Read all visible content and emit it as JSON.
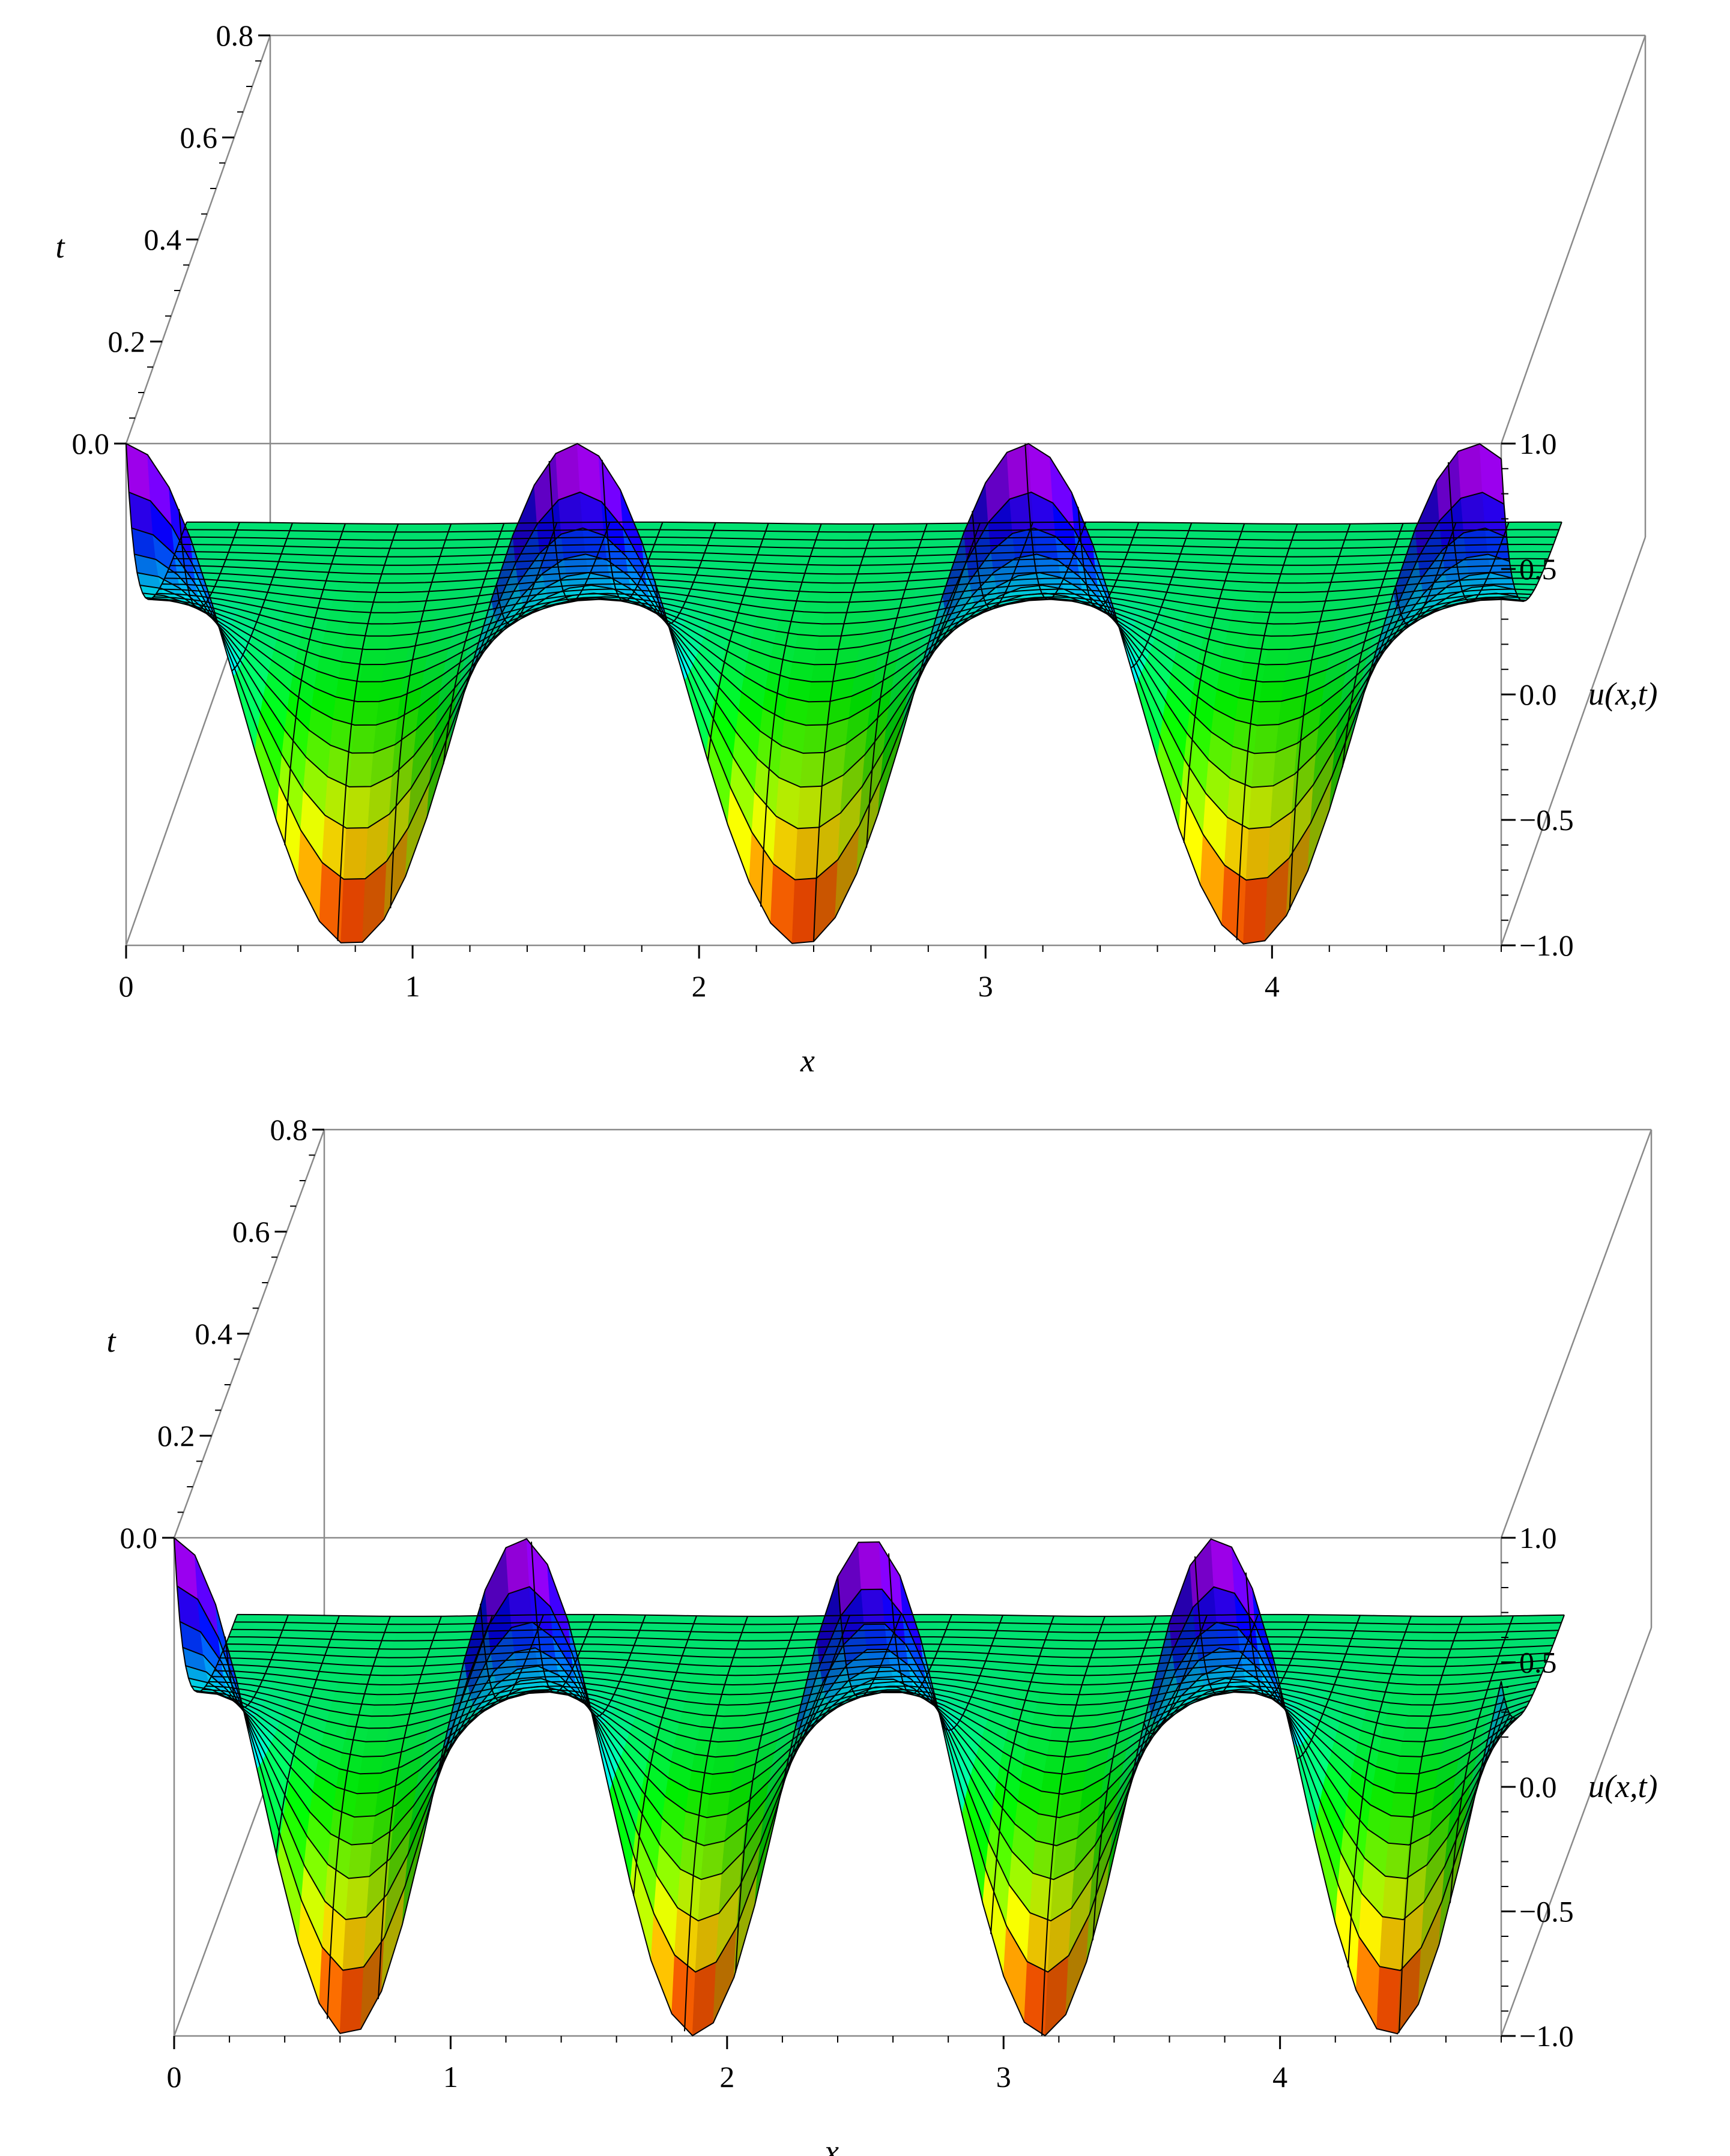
{
  "chart_data": [
    {
      "type": "surface3d",
      "function_label": "u(x,t)",
      "x_axis": {
        "label": "x",
        "ticks": [
          "0",
          "1",
          "2",
          "3",
          "4"
        ],
        "range": [
          0,
          4.8
        ]
      },
      "t_axis": {
        "label": "t",
        "ticks": [
          "0.0",
          "0.2",
          "0.4",
          "0.6",
          "0.8"
        ],
        "range": [
          0,
          0.8
        ]
      },
      "u_axis": {
        "label": "u(x,t)",
        "ticks": [
          "1.0",
          "0.5",
          "0.0",
          "−0.5",
          "−1.0"
        ],
        "range": [
          -1,
          1
        ]
      },
      "initial_profile": "cos(4x)",
      "x_range": [
        0,
        4.8
      ],
      "t_range": [
        0,
        0.8
      ],
      "minima_x_at_t0": [
        0.79,
        2.36,
        3.93
      ],
      "maxima_x_at_t0": [
        0,
        1.57,
        3.14,
        4.71
      ],
      "plateau_u_at_late_t": 0.0,
      "colormap": "Hue (red at u=-1 to magenta at u=1)"
    },
    {
      "type": "surface3d",
      "function_label": "u(x,t)",
      "x_axis": {
        "label": "x",
        "ticks": [
          "0",
          "1",
          "2",
          "3",
          "4"
        ],
        "range": [
          0,
          4.8
        ]
      },
      "t_axis": {
        "label": "t",
        "ticks": [
          "0.0",
          "0.2",
          "0.4",
          "0.6",
          "0.8"
        ],
        "range": [
          0,
          0.8
        ]
      },
      "u_axis": {
        "label": "u(x,t)",
        "ticks": [
          "1.0",
          "0.5",
          "0.0",
          "−0.5",
          "−1.0"
        ],
        "range": [
          -1,
          1
        ]
      },
      "initial_profile": "cos(5x)",
      "x_range": [
        0,
        4.8
      ],
      "t_range": [
        0,
        0.8
      ],
      "minima_x_at_t0": [
        0.63,
        1.88,
        3.14,
        4.4
      ],
      "maxima_x_at_t0": [
        0,
        1.26,
        2.51,
        3.77
      ],
      "plateau_u_at_late_t": 0.0,
      "colormap": "Hue (red at u=-1 to magenta at u=1)"
    }
  ]
}
